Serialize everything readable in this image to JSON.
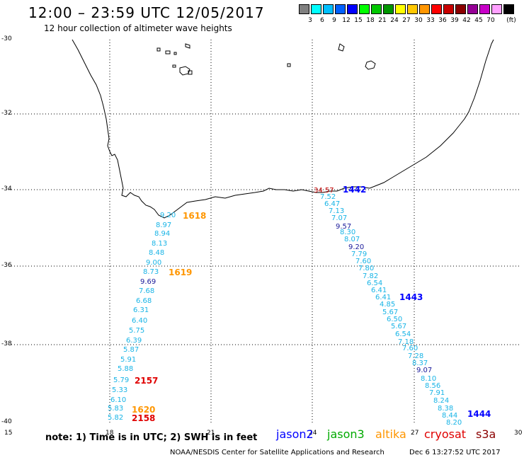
{
  "header": {
    "title": "12:00 – 23:59 UTC 12/05/2017",
    "subtitle": "12 hour collection of altimeter wave heights"
  },
  "legend": {
    "unit": "(ft)",
    "swatches": [
      {
        "color": "#808080",
        "label": ""
      },
      {
        "color": "#00ffff",
        "label": "3"
      },
      {
        "color": "#00bfff",
        "label": "6"
      },
      {
        "color": "#0060ff",
        "label": "9"
      },
      {
        "color": "#0000ff",
        "label": "12"
      },
      {
        "color": "#00ff00",
        "label": "15"
      },
      {
        "color": "#00c800",
        "label": "18"
      },
      {
        "color": "#009600",
        "label": "21"
      },
      {
        "color": "#ffff00",
        "label": "24"
      },
      {
        "color": "#ffc800",
        "label": "27"
      },
      {
        "color": "#ff9600",
        "label": "30"
      },
      {
        "color": "#ff0000",
        "label": "33"
      },
      {
        "color": "#c80000",
        "label": "36"
      },
      {
        "color": "#8b0000",
        "label": "39"
      },
      {
        "color": "#960096",
        "label": "42"
      },
      {
        "color": "#c800c8",
        "label": "45"
      },
      {
        "color": "#ffa0ff",
        "label": "70"
      },
      {
        "color": "#000000",
        "label": ""
      }
    ]
  },
  "axes": {
    "lat_labels": [
      "-30",
      "-32",
      "-34",
      "-36",
      "-38",
      "-40"
    ],
    "lon_labels": [
      "15",
      "18",
      "21",
      "24",
      "27",
      "30"
    ]
  },
  "track_values": [
    {
      "t": "9.20",
      "c": "#18b4e6"
    },
    {
      "t": "8.97",
      "c": "#18b4e6"
    },
    {
      "t": "8.94",
      "c": "#18b4e6"
    },
    {
      "t": "8.13",
      "c": "#18b4e6"
    },
    {
      "t": "8.48",
      "c": "#18b4e6"
    },
    {
      "t": "9.00",
      "c": "#18b4e6"
    },
    {
      "t": "8.73",
      "c": "#18b4e6"
    },
    {
      "t": "9.69",
      "c": "#1a1a9a"
    },
    {
      "t": "7.68",
      "c": "#18b4e6"
    },
    {
      "t": "6.68",
      "c": "#18b4e6"
    },
    {
      "t": "6.31",
      "c": "#18b4e6"
    },
    {
      "t": "6.40",
      "c": "#18b4e6"
    },
    {
      "t": "5.75",
      "c": "#18b4e6"
    },
    {
      "t": "6.39",
      "c": "#18b4e6"
    },
    {
      "t": "5.87",
      "c": "#18b4e6"
    },
    {
      "t": "5.91",
      "c": "#18b4e6"
    },
    {
      "t": "5.88",
      "c": "#18b4e6"
    },
    {
      "t": "5.79",
      "c": "#18b4e6"
    },
    {
      "t": "5.33",
      "c": "#18b4e6"
    },
    {
      "t": "6.10",
      "c": "#18b4e6"
    },
    {
      "t": "5.83",
      "c": "#18b4e6"
    },
    {
      "t": "5.82",
      "c": "#18b4e6"
    },
    {
      "t": "34.57",
      "c": "#c00000"
    },
    {
      "t": "7.52",
      "c": "#18b4e6"
    },
    {
      "t": "6.47",
      "c": "#18b4e6"
    },
    {
      "t": "7.13",
      "c": "#18b4e6"
    },
    {
      "t": "7.07",
      "c": "#18b4e6"
    },
    {
      "t": "9.57",
      "c": "#1a1a9a"
    },
    {
      "t": "8.30",
      "c": "#18b4e6"
    },
    {
      "t": "8.07",
      "c": "#18b4e6"
    },
    {
      "t": "9.20",
      "c": "#1a1a9a"
    },
    {
      "t": "7.79",
      "c": "#18b4e6"
    },
    {
      "t": "7.60",
      "c": "#18b4e6"
    },
    {
      "t": "7.80",
      "c": "#18b4e6"
    },
    {
      "t": "7.82",
      "c": "#18b4e6"
    },
    {
      "t": "6.54",
      "c": "#18b4e6"
    },
    {
      "t": "6.41",
      "c": "#18b4e6"
    },
    {
      "t": "6.41",
      "c": "#18b4e6"
    },
    {
      "t": "4.85",
      "c": "#18b4e6"
    },
    {
      "t": "5.67",
      "c": "#18b4e6"
    },
    {
      "t": "6.50",
      "c": "#18b4e6"
    },
    {
      "t": "5.67",
      "c": "#18b4e6"
    },
    {
      "t": "6.54",
      "c": "#18b4e6"
    },
    {
      "t": "7.18",
      "c": "#18b4e6"
    },
    {
      "t": "7.60",
      "c": "#18b4e6"
    },
    {
      "t": "7.28",
      "c": "#18b4e6"
    },
    {
      "t": "8.37",
      "c": "#18b4e6"
    },
    {
      "t": "9.07",
      "c": "#1a1a9a"
    },
    {
      "t": "8.10",
      "c": "#18b4e6"
    },
    {
      "t": "8.56",
      "c": "#18b4e6"
    },
    {
      "t": "7.91",
      "c": "#18b4e6"
    },
    {
      "t": "8.24",
      "c": "#18b4e6"
    },
    {
      "t": "8.38",
      "c": "#18b4e6"
    },
    {
      "t": "8.44",
      "c": "#18b4e6"
    },
    {
      "t": "8.20",
      "c": "#18b4e6"
    }
  ],
  "time_labels": [
    {
      "t": "1618",
      "c": "#ff9600"
    },
    {
      "t": "1619",
      "c": "#ff9600"
    },
    {
      "t": "2157",
      "c": "#e00000"
    },
    {
      "t": "1620",
      "c": "#ff9600"
    },
    {
      "t": "2158",
      "c": "#e00000"
    },
    {
      "t": "1442",
      "c": "#0000ff"
    },
    {
      "t": "1443",
      "c": "#0000ff"
    },
    {
      "t": "1444",
      "c": "#0000ff"
    }
  ],
  "footer": {
    "note": "note: 1) Time is in UTC; 2) SWH is in feet",
    "satellites": [
      {
        "name": "jason2",
        "color": "#0000ff"
      },
      {
        "name": "jason3",
        "color": "#00aa00"
      },
      {
        "name": "altika",
        "color": "#ff9600"
      },
      {
        "name": "cryosat",
        "color": "#e00000"
      },
      {
        "name": "s3a",
        "color": "#8b0000"
      }
    ],
    "credit": "NOAA/NESDIS Center for Satellite Applications and Research",
    "timestamp": "Dec  6 13:27:52 UTC 2017"
  }
}
